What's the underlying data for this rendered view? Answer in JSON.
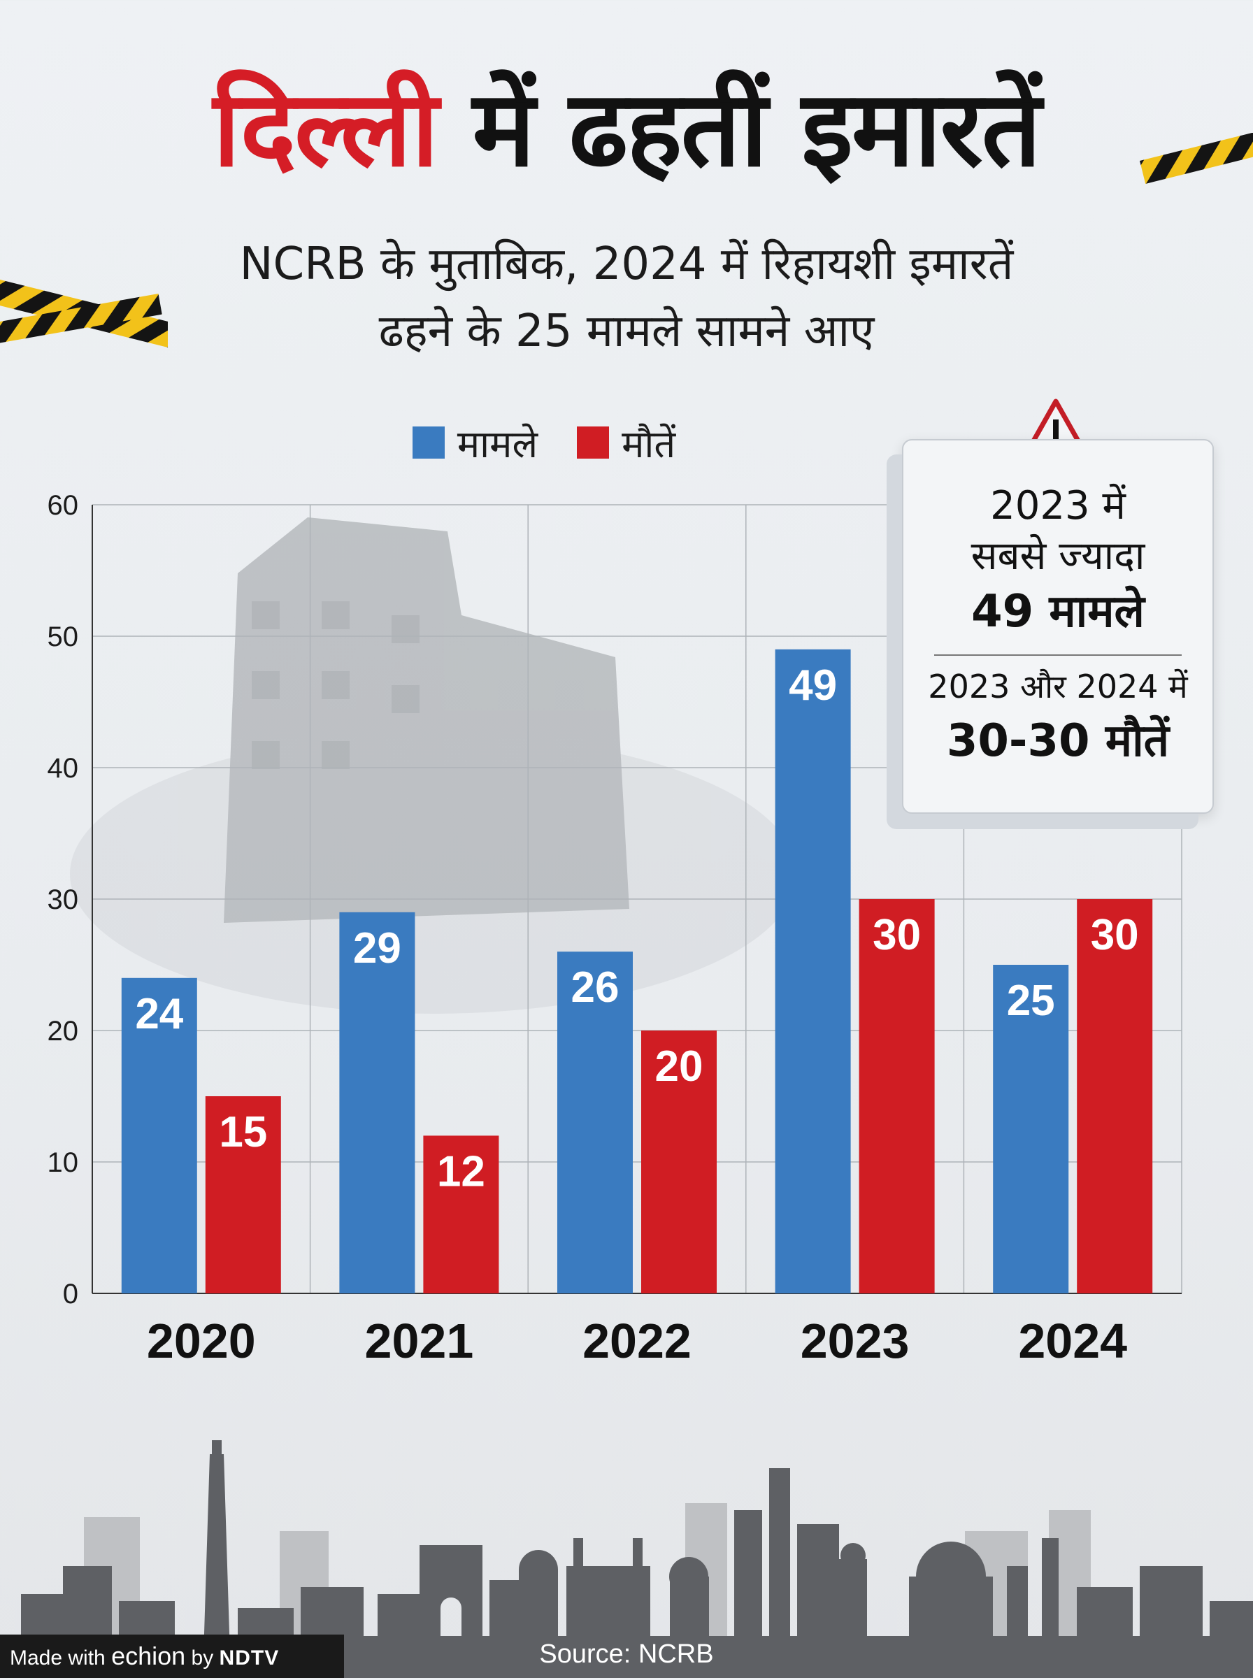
{
  "title": {
    "part1": "दिल्ली",
    "part2": " में ढहतीं इमारतें"
  },
  "subtitle": {
    "line1": "NCRB के मुताबिक, 2024 में रिहायशी इमारतें",
    "line2": "ढहने के 25 मामले सामने आए"
  },
  "legend": {
    "cases": "मामले",
    "deaths": "मौतें"
  },
  "colors": {
    "cases": "#3a7bc0",
    "deaths": "#d01d23",
    "title_red": "#d51d26"
  },
  "callout": {
    "icon": "warning-icon",
    "line1": "2023 में",
    "line2": "सबसे ज्यादा",
    "line3": "49 मामले",
    "line4": "2023 और 2024 में",
    "line5": "30-30 मौतें"
  },
  "chart_data": {
    "type": "bar",
    "categories": [
      "2020",
      "2021",
      "2022",
      "2023",
      "2024"
    ],
    "series": [
      {
        "name": "मामले",
        "values": [
          24,
          29,
          26,
          49,
          25
        ]
      },
      {
        "name": "मौतें",
        "values": [
          15,
          12,
          20,
          30,
          30
        ]
      }
    ],
    "ylim": [
      0,
      60
    ],
    "yticks": [
      0,
      10,
      20,
      30,
      40,
      50,
      60
    ],
    "grid": true,
    "legend": "top-center"
  },
  "footer": {
    "made_with": "Made with",
    "brand": "echion",
    "by": "by",
    "publisher": "NDTV",
    "source": "Source: NCRB"
  }
}
